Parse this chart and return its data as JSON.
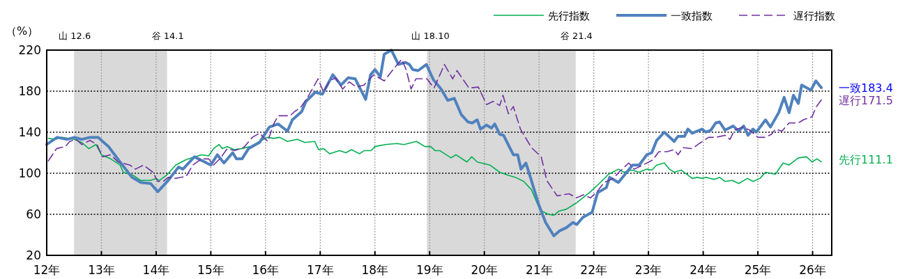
{
  "chart_data": {
    "type": "line",
    "ylabel": "（%）",
    "xlim": [
      12,
      26.35
    ],
    "xticks": [
      {
        "value": 12,
        "label": "12年"
      },
      {
        "value": 13,
        "label": "13年"
      },
      {
        "value": 14,
        "label": "14年"
      },
      {
        "value": 15,
        "label": "15年"
      },
      {
        "value": 16,
        "label": "16年"
      },
      {
        "value": 17,
        "label": "17年"
      },
      {
        "value": 18,
        "label": "18年"
      },
      {
        "value": 19,
        "label": "19年"
      },
      {
        "value": 20,
        "label": "20年"
      },
      {
        "value": 21,
        "label": "21年"
      },
      {
        "value": 22,
        "label": "22年"
      },
      {
        "value": 23,
        "label": "23年"
      },
      {
        "value": 24,
        "label": "24年"
      },
      {
        "value": 25,
        "label": "25年"
      },
      {
        "value": 26,
        "label": "26年"
      }
    ],
    "ylim": [
      20,
      220
    ],
    "yticks": [
      20,
      60,
      100,
      140,
      180,
      220
    ],
    "grid": true,
    "legend": "top right",
    "bands": [
      {
        "axis": "x",
        "from": 12.5,
        "to": 14.2,
        "color": "#d9d9d9"
      },
      {
        "axis": "x",
        "from": 18.95,
        "to": 21.67,
        "color": "#d9d9d9"
      }
    ],
    "annotations": [
      {
        "text": "山  12.6",
        "x": 12.5,
        "y": 220
      },
      {
        "text": "谷  14.1",
        "x": 14.2,
        "y": 220
      },
      {
        "text": "山  18.10",
        "x": 18.95,
        "y": 220
      },
      {
        "text": "谷  21.4",
        "x": 21.67,
        "y": 220
      },
      {
        "text": "一致183.4",
        "x": 26.16,
        "y": 183.4
      },
      {
        "text": "遅行171.5",
        "x": 26.16,
        "y": 171.5
      },
      {
        "text": "先行111.1",
        "x": 26.16,
        "y": 111.1
      }
    ],
    "series": [
      {
        "name": "先行指数",
        "color": "#00b050",
        "line_style": "solid",
        "x": [
          12.03,
          12.16,
          12.28,
          12.5,
          12.64,
          12.77,
          12.9,
          13.0,
          13.17,
          13.34,
          13.4,
          13.58,
          13.72,
          13.9,
          14.0,
          14.06,
          14.19,
          14.36,
          14.54,
          14.7,
          14.83,
          14.96,
          15.05,
          15.15,
          15.21,
          15.3,
          15.43,
          15.56,
          15.72,
          15.89,
          16.04,
          16.15,
          16.26,
          16.4,
          16.58,
          16.72,
          16.9,
          16.97,
          17.06,
          17.17,
          17.35,
          17.47,
          17.57,
          17.72,
          17.8,
          17.93,
          18.0,
          18.19,
          18.4,
          18.53,
          18.76,
          18.91,
          19.02,
          19.1,
          19.19,
          19.39,
          19.48,
          19.68,
          19.77,
          19.87,
          20.1,
          20.28,
          20.44,
          20.57,
          20.72,
          20.86,
          21.02,
          21.17,
          21.27,
          21.36,
          21.5,
          21.68,
          21.8,
          21.94,
          22.1,
          22.27,
          22.45,
          22.55,
          22.7,
          22.83,
          22.97,
          23.06,
          23.15,
          23.29,
          23.38,
          23.47,
          23.6,
          23.8,
          23.89,
          23.98,
          24.05,
          24.2,
          24.3,
          24.4,
          24.53,
          24.65,
          24.81,
          24.91,
          25.04,
          25.14,
          25.32,
          25.46,
          25.57,
          25.74,
          25.89,
          25.99,
          26.08,
          26.16
        ],
        "values": [
          134,
          133,
          135,
          133,
          130,
          124,
          128,
          118,
          114,
          108,
          101,
          98,
          93,
          93,
          95,
          93,
          98,
          108,
          113,
          116,
          118,
          117,
          124,
          128,
          124,
          126,
          123,
          124,
          126,
          131,
          135,
          134,
          135,
          131,
          133,
          130,
          131,
          123,
          124,
          119,
          122,
          120,
          123,
          119,
          122,
          122,
          126,
          128,
          129,
          128,
          131,
          126,
          126,
          122,
          122,
          115,
          118,
          111,
          116,
          111,
          108,
          101,
          98,
          96,
          92,
          84,
          64,
          60,
          59,
          63,
          65,
          71,
          76,
          82,
          90,
          99,
          104,
          101,
          103,
          101,
          104,
          103,
          108,
          110,
          104,
          101,
          103,
          95,
          96,
          95,
          96,
          94,
          96,
          92,
          93,
          90,
          95,
          92,
          95,
          101,
          99,
          110,
          108,
          115,
          116,
          111,
          114,
          111.1
        ]
      },
      {
        "name": "一致指数",
        "color": "#4f81bd",
        "line_style": "solid",
        "x": [
          12.0,
          12.19,
          12.37,
          12.51,
          12.64,
          12.79,
          12.94,
          13.13,
          13.34,
          13.56,
          13.72,
          13.9,
          14.03,
          14.22,
          14.41,
          14.49,
          14.7,
          15.0,
          15.12,
          15.24,
          15.4,
          15.47,
          15.57,
          15.69,
          15.89,
          16.07,
          16.23,
          16.4,
          16.49,
          16.66,
          16.74,
          16.91,
          17.04,
          17.23,
          17.38,
          17.51,
          17.64,
          17.83,
          17.92,
          18.0,
          18.1,
          18.17,
          18.3,
          18.43,
          18.56,
          18.63,
          18.69,
          18.79,
          18.94,
          19.07,
          19.21,
          19.33,
          19.45,
          19.58,
          19.7,
          19.78,
          19.87,
          19.93,
          20.04,
          20.13,
          20.19,
          20.28,
          20.35,
          20.53,
          20.61,
          20.67,
          20.76,
          20.86,
          20.99,
          21.12,
          21.27,
          21.38,
          21.5,
          21.62,
          21.69,
          21.8,
          21.97,
          22.07,
          22.23,
          22.29,
          22.45,
          22.71,
          22.83,
          22.97,
          23.06,
          23.15,
          23.29,
          23.47,
          23.54,
          23.66,
          23.72,
          23.8,
          23.98,
          24.05,
          24.14,
          24.23,
          24.3,
          24.4,
          24.55,
          24.65,
          24.74,
          24.82,
          24.91,
          24.97,
          25.14,
          25.23,
          25.38,
          25.48,
          25.57,
          25.65,
          25.74,
          25.8,
          25.97,
          26.06,
          26.16
        ],
        "values": [
          128,
          135,
          133,
          135,
          133,
          135,
          135,
          126,
          111,
          96,
          91,
          90,
          82,
          93,
          106,
          104,
          116,
          108,
          118,
          110,
          120,
          114,
          114,
          124,
          130,
          145,
          148,
          141,
          152,
          160,
          170,
          179,
          177,
          196,
          186,
          193,
          192,
          172,
          196,
          201,
          194,
          216,
          220,
          206,
          208,
          206,
          201,
          200,
          206,
          191,
          182,
          171,
          173,
          157,
          150,
          149,
          152,
          143,
          147,
          144,
          148,
          138,
          137,
          118,
          118,
          104,
          110,
          93,
          70,
          52,
          39,
          44,
          47,
          52,
          50,
          57,
          62,
          81,
          86,
          96,
          91,
          108,
          108,
          118,
          120,
          132,
          140,
          131,
          136,
          136,
          143,
          139,
          143,
          140,
          142,
          149,
          150,
          142,
          146,
          141,
          146,
          137,
          143,
          140,
          152,
          145,
          159,
          174,
          159,
          176,
          168,
          186,
          181,
          190,
          183.4
        ]
      },
      {
        "name": "遅行指数",
        "color": "#7030a0",
        "line_style": "dashed",
        "x": [
          12.03,
          12.18,
          12.34,
          12.42,
          12.54,
          12.64,
          12.79,
          12.92,
          13.02,
          13.17,
          13.3,
          13.52,
          13.62,
          13.77,
          13.94,
          14.03,
          14.13,
          14.22,
          14.36,
          14.55,
          14.67,
          14.83,
          14.96,
          15.05,
          15.18,
          15.3,
          15.43,
          15.6,
          15.76,
          15.89,
          16.04,
          16.15,
          16.23,
          16.45,
          16.53,
          16.64,
          16.77,
          16.96,
          17.06,
          17.17,
          17.28,
          17.41,
          17.53,
          17.66,
          17.8,
          17.98,
          18.17,
          18.36,
          18.49,
          18.57,
          18.66,
          18.75,
          18.88,
          18.95,
          19.08,
          19.23,
          19.27,
          19.42,
          19.5,
          19.72,
          19.89,
          20.04,
          20.16,
          20.28,
          20.34,
          20.44,
          20.53,
          20.66,
          20.86,
          21.04,
          21.14,
          21.33,
          21.55,
          21.68,
          21.81,
          21.94,
          22.06,
          22.19,
          22.36,
          22.46,
          22.64,
          22.74,
          22.9,
          23.08,
          23.19,
          23.34,
          23.47,
          23.54,
          23.63,
          23.8,
          23.93,
          24.1,
          24.23,
          24.4,
          24.49,
          24.57,
          24.72,
          24.85,
          25.0,
          25.13,
          25.25,
          25.32,
          25.44,
          25.57,
          25.74,
          25.83,
          25.99,
          26.06,
          26.16
        ],
        "values": [
          112,
          124,
          126,
          131,
          133,
          128,
          132,
          128,
          116,
          118,
          111,
          108,
          104,
          108,
          101,
          92,
          92,
          96,
          95,
          97,
          108,
          114,
          114,
          108,
          115,
          124,
          122,
          125,
          135,
          139,
          131,
          148,
          156,
          156,
          160,
          164,
          174,
          192,
          179,
          190,
          193,
          182,
          189,
          184,
          186,
          196,
          190,
          203,
          211,
          201,
          182,
          192,
          192,
          192,
          183,
          201,
          206,
          192,
          200,
          183,
          184,
          167,
          170,
          166,
          176,
          158,
          165,
          143,
          125,
          116,
          93,
          78,
          80,
          76,
          79,
          76,
          82,
          91,
          95,
          101,
          110,
          104,
          108,
          113,
          121,
          121,
          123,
          118,
          125,
          124,
          129,
          135,
          135,
          137,
          133,
          142,
          145,
          142,
          135,
          135,
          138,
          143,
          141,
          149,
          149,
          152,
          155,
          164,
          171.5
        ]
      }
    ]
  }
}
